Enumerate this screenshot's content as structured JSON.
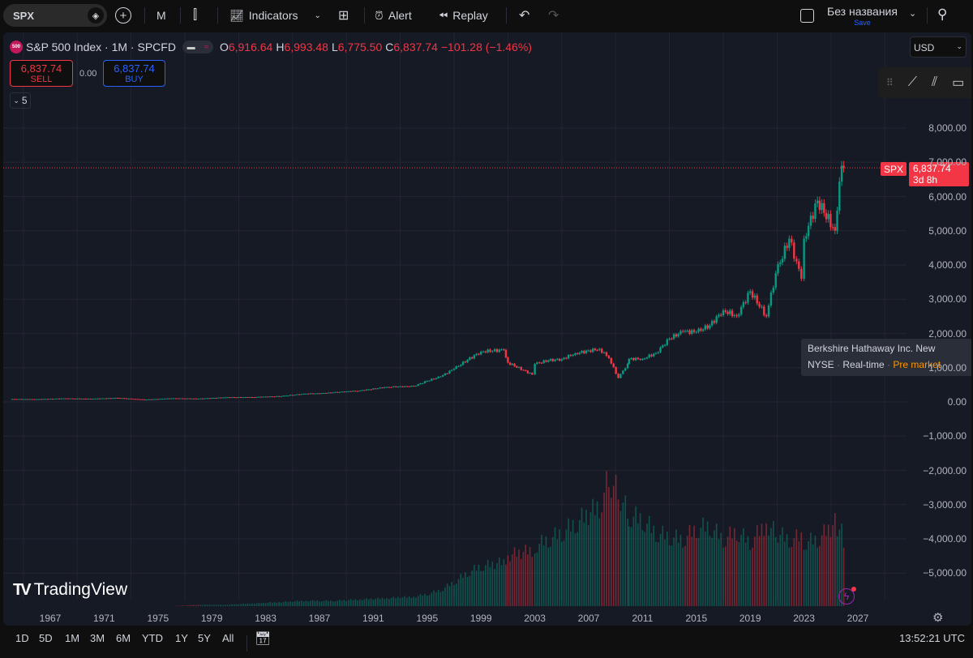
{
  "toolbar": {
    "symbol": "SPX",
    "interval": "M",
    "indicators": "Indicators",
    "alert": "Alert",
    "replay": "Replay",
    "layout_name": "Без названия",
    "save": "Save"
  },
  "legend": {
    "title": "S&P 500 Index · 1M · SPCFD",
    "open_label": "O",
    "open": "6,916.64",
    "high_label": "H",
    "high": "6,993.48",
    "low_label": "L",
    "low": "6,775.50",
    "close_label": "C",
    "close": "6,837.74",
    "change": "−101.28 (−1.46%)",
    "logo": "500"
  },
  "trade": {
    "sell_price": "6,837.74",
    "sell": "SELL",
    "spread": "0.00",
    "buy_price": "6,837.74",
    "buy": "BUY"
  },
  "collapse_count": "5",
  "currency": "USD",
  "price_tag": {
    "symbol": "SPX",
    "price": "6,837.74",
    "countdown": "3d 8h"
  },
  "tooltip": {
    "name": "Berkshire Hathaway Inc. New",
    "exchange": "NYSE",
    "feed": "Real-time",
    "session": "Pre market"
  },
  "brand": "TradingView",
  "timeframes": [
    "1D",
    "5D",
    "1M",
    "3M",
    "6M",
    "YTD",
    "1Y",
    "5Y",
    "All"
  ],
  "clock": "13:52:21 UTC",
  "colors": {
    "up": "#089981",
    "down": "#f23645",
    "bg": "#161a25",
    "accent": "#2962ff"
  },
  "chart_data": {
    "type": "candlestick",
    "y_ticks": [
      "8,000.00",
      "7,000.00",
      "6,000.00",
      "5,000.00",
      "4,000.00",
      "3,000.00",
      "2,000.00",
      "1,000.00",
      "0.00",
      "−1,000.00",
      "−2,000.00",
      "−3,000.00",
      "−4,000.00",
      "−5,000.00"
    ],
    "y_tick_values": [
      8000,
      7000,
      6000,
      5000,
      4000,
      3000,
      2000,
      1000,
      0,
      -1000,
      -2000,
      -3000,
      -4000,
      -5000
    ],
    "x_ticks": [
      "1967",
      "1971",
      "1975",
      "1979",
      "1983",
      "1987",
      "1991",
      "1995",
      "1999",
      "2003",
      "2007",
      "2011",
      "2015",
      "2019",
      "2023",
      "2027"
    ],
    "ylim": [
      -5600,
      10000
    ],
    "xlim": [
      1963.5,
      2029.5
    ],
    "last_price": 6837.74,
    "x": [
      1964,
      1966,
      1968,
      1970,
      1972,
      1974,
      1976,
      1978,
      1980,
      1982,
      1984,
      1986,
      1987,
      1988,
      1990,
      1992,
      1994,
      1995,
      1996,
      1997,
      1998,
      1999,
      2000.7,
      2001,
      2002.8,
      2003,
      2004,
      2005,
      2006,
      2007.8,
      2008.5,
      2009.2,
      2009.9,
      2010,
      2011,
      2012,
      2013,
      2014,
      2015,
      2016,
      2017,
      2018,
      2019,
      2020.2,
      2020.9,
      2021.9,
      2022.8,
      2023,
      2024,
      2025.3,
      2025.8,
      2025.95
    ],
    "close": [
      84,
      80,
      103,
      92,
      118,
      68,
      107,
      96,
      135,
      140,
      167,
      242,
      247,
      277,
      330,
      435,
      459,
      615,
      740,
      970,
      1229,
      1469,
      1520,
      1148,
      800,
      1111,
      1211,
      1248,
      1418,
      1550,
      1280,
      700,
      1115,
      1257,
      1257,
      1426,
      1848,
      2058,
      2043,
      2238,
      2673,
      2506,
      3230,
      2500,
      3756,
      4766,
      3600,
      4769,
      5881,
      5000,
      6900,
      6837.74
    ],
    "volume_relative_pct": [
      0,
      0,
      0,
      0,
      0,
      0,
      0,
      1,
      1,
      2,
      3,
      4,
      4,
      4,
      5,
      6,
      7,
      9,
      12,
      18,
      25,
      30,
      33,
      38,
      42,
      45,
      50,
      55,
      62,
      75,
      95,
      85,
      70,
      68,
      65,
      55,
      52,
      50,
      58,
      60,
      50,
      56,
      48,
      62,
      55,
      50,
      52,
      48,
      50,
      62,
      55,
      50
    ]
  }
}
